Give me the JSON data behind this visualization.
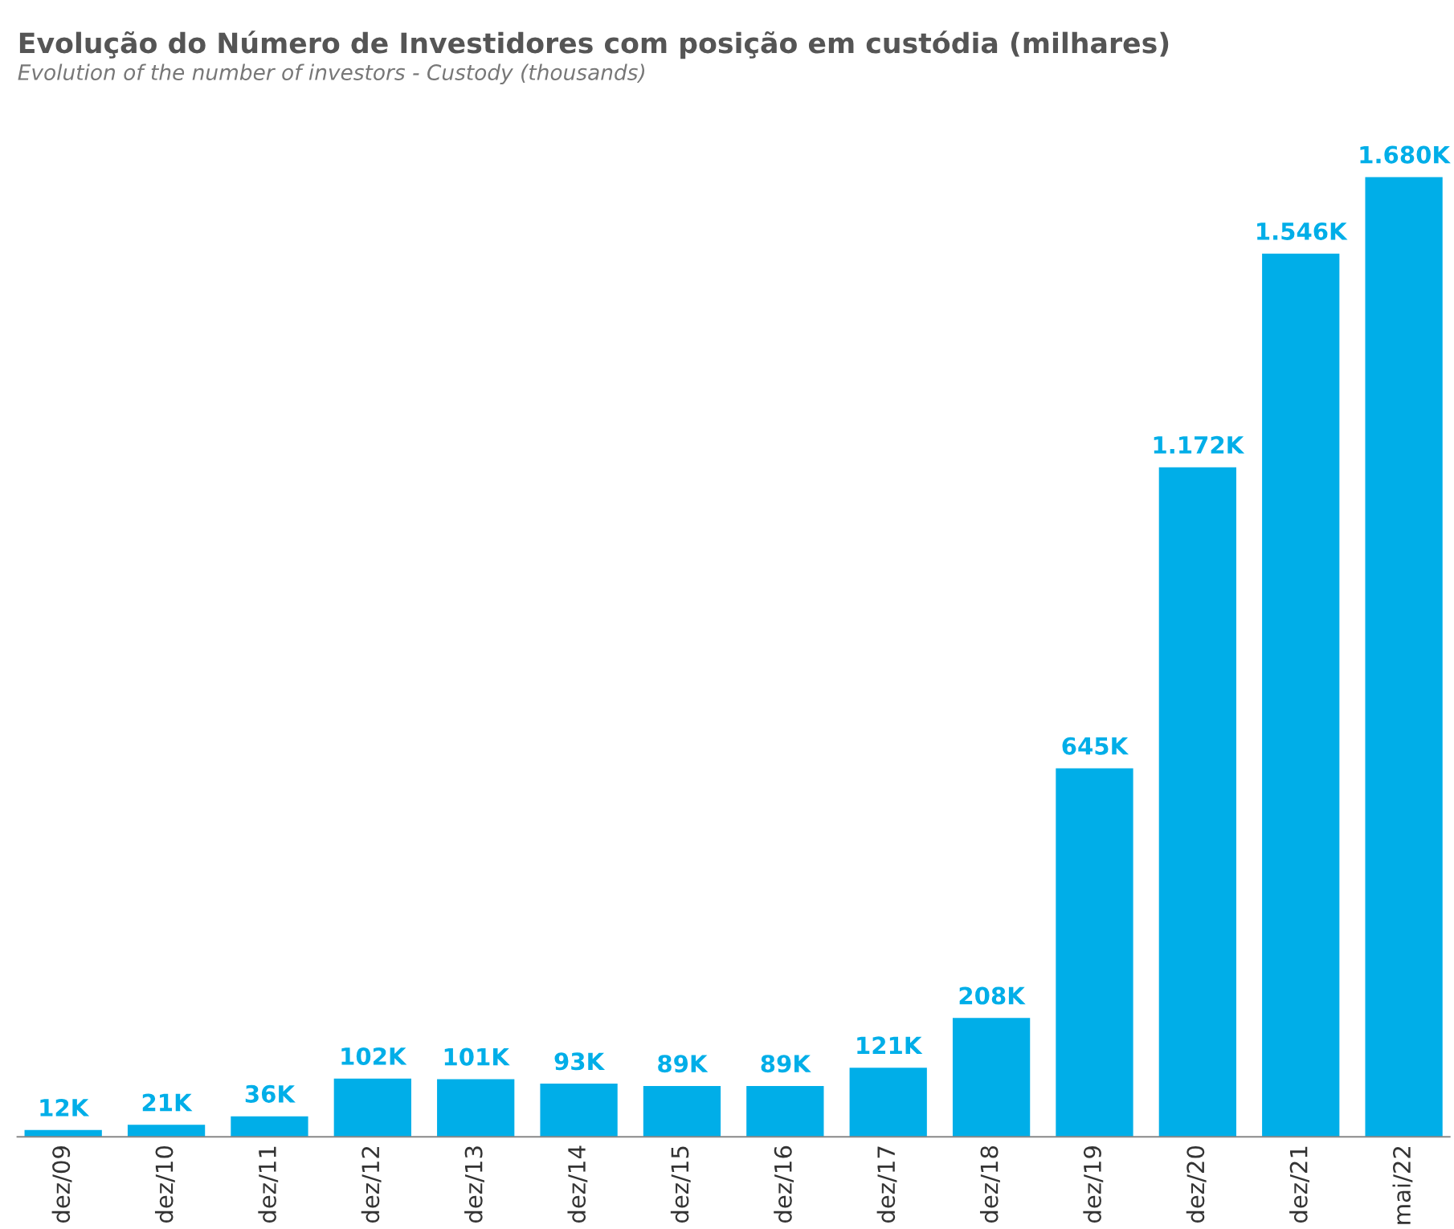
{
  "chart_data": {
    "type": "bar",
    "title": "Evolução do Número de Investidores com posição em custódia (milhares)",
    "subtitle": "Evolution of the number of investors - Custody (thousands)",
    "categories": [
      "dez/09",
      "dez/10",
      "dez/11",
      "dez/12",
      "dez/13",
      "dez/14",
      "dez/15",
      "dez/16",
      "dez/17",
      "dez/18",
      "dez/19",
      "dez/20",
      "dez/21",
      "mai/22"
    ],
    "values": [
      12,
      21,
      36,
      102,
      101,
      93,
      89,
      89,
      121,
      208,
      645,
      1172,
      1546,
      1680
    ],
    "value_labels": [
      "12K",
      "21K",
      "36K",
      "102K",
      "101K",
      "93K",
      "89K",
      "89K",
      "121K",
      "208K",
      "645K",
      "1.172K",
      "1.546K",
      "1.680K"
    ],
    "color": "#00aee8",
    "tick_labels": "x",
    "grid": false,
    "legend": false
  }
}
